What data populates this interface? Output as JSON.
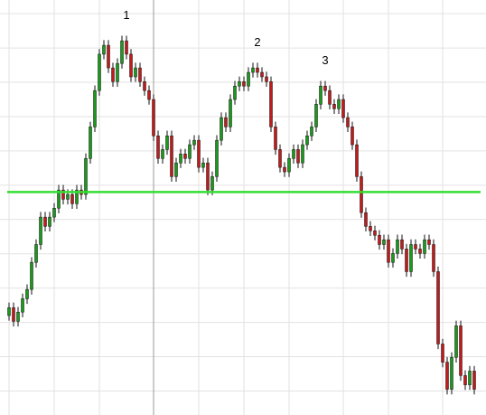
{
  "chart_data": {
    "type": "candlestick",
    "candles": [
      [
        22.0,
        25.8,
        20.5,
        24.3
      ],
      [
        24.3,
        25.8,
        18.8,
        20.3
      ],
      [
        20.3,
        24.5,
        18.8,
        23.0
      ],
      [
        23.0,
        28.4,
        21.5,
        26.9
      ],
      [
        26.9,
        31.1,
        25.4,
        29.6
      ],
      [
        29.6,
        39.0,
        28.1,
        37.5
      ],
      [
        37.5,
        44.2,
        36.0,
        42.7
      ],
      [
        42.7,
        52.2,
        41.2,
        50.7
      ],
      [
        50.7,
        52.2,
        46.5,
        48.0
      ],
      [
        48.0,
        52.2,
        46.5,
        50.7
      ],
      [
        50.7,
        54.8,
        49.2,
        53.3
      ],
      [
        53.3,
        60.1,
        51.8,
        58.6
      ],
      [
        58.6,
        60.1,
        54.4,
        55.9
      ],
      [
        55.9,
        58.8,
        54.4,
        57.3
      ],
      [
        57.3,
        58.8,
        53.1,
        54.6
      ],
      [
        54.6,
        60.1,
        53.1,
        58.6
      ],
      [
        58.6,
        60.1,
        55.8,
        57.3
      ],
      [
        57.3,
        69.3,
        55.8,
        67.8
      ],
      [
        67.8,
        78.5,
        66.3,
        77.0
      ],
      [
        77.0,
        89.1,
        75.5,
        87.6
      ],
      [
        87.6,
        99.7,
        86.1,
        98.2
      ],
      [
        98.2,
        102.3,
        96.7,
        100.8
      ],
      [
        100.8,
        102.3,
        92.7,
        94.2
      ],
      [
        94.2,
        95.7,
        88.7,
        90.2
      ],
      [
        90.2,
        97.0,
        88.7,
        95.5
      ],
      [
        95.5,
        103.6,
        94.0,
        102.1
      ],
      [
        102.1,
        103.6,
        96.7,
        98.2
      ],
      [
        98.2,
        99.7,
        90.1,
        91.6
      ],
      [
        91.6,
        95.7,
        90.1,
        94.2
      ],
      [
        94.2,
        95.7,
        88.7,
        90.2
      ],
      [
        90.2,
        91.7,
        86.1,
        87.6
      ],
      [
        87.6,
        89.1,
        83.5,
        85.0
      ],
      [
        85.0,
        86.5,
        72.9,
        74.4
      ],
      [
        74.4,
        75.9,
        66.3,
        67.8
      ],
      [
        67.8,
        71.9,
        66.3,
        70.4
      ],
      [
        70.4,
        75.9,
        68.9,
        74.4
      ],
      [
        74.4,
        75.9,
        61.0,
        62.5
      ],
      [
        62.5,
        68.0,
        61.0,
        66.5
      ],
      [
        66.5,
        70.6,
        65.0,
        69.1
      ],
      [
        69.1,
        70.6,
        66.3,
        67.8
      ],
      [
        67.8,
        73.3,
        66.3,
        71.8
      ],
      [
        71.8,
        74.6,
        70.3,
        73.1
      ],
      [
        73.1,
        74.6,
        63.7,
        65.2
      ],
      [
        65.2,
        68.0,
        63.7,
        66.5
      ],
      [
        66.5,
        68.0,
        57.1,
        58.6
      ],
      [
        58.6,
        64.0,
        57.1,
        62.5
      ],
      [
        62.5,
        74.6,
        61.0,
        73.1
      ],
      [
        73.1,
        81.2,
        71.6,
        79.7
      ],
      [
        79.7,
        81.2,
        75.5,
        77.0
      ],
      [
        77.0,
        86.5,
        75.5,
        85.0
      ],
      [
        85.0,
        90.4,
        83.5,
        88.9
      ],
      [
        88.9,
        91.7,
        87.4,
        90.2
      ],
      [
        90.2,
        91.7,
        87.4,
        88.9
      ],
      [
        88.9,
        94.4,
        87.4,
        92.9
      ],
      [
        92.9,
        95.7,
        91.4,
        94.2
      ],
      [
        94.2,
        95.7,
        91.4,
        92.9
      ],
      [
        92.9,
        94.4,
        90.1,
        91.6
      ],
      [
        91.6,
        93.1,
        88.7,
        90.2
      ],
      [
        90.2,
        91.7,
        75.5,
        77.0
      ],
      [
        77.0,
        78.5,
        68.9,
        70.4
      ],
      [
        70.4,
        71.9,
        63.7,
        65.2
      ],
      [
        65.2,
        66.7,
        62.4,
        63.9
      ],
      [
        63.9,
        69.3,
        62.4,
        67.8
      ],
      [
        67.8,
        71.9,
        66.3,
        70.4
      ],
      [
        70.4,
        71.9,
        65.0,
        66.5
      ],
      [
        66.5,
        73.3,
        65.0,
        71.8
      ],
      [
        71.8,
        75.9,
        70.3,
        74.4
      ],
      [
        74.4,
        78.5,
        72.9,
        77.0
      ],
      [
        77.0,
        85.1,
        75.5,
        83.6
      ],
      [
        83.6,
        90.4,
        82.1,
        88.9
      ],
      [
        88.9,
        90.4,
        86.1,
        87.6
      ],
      [
        87.6,
        89.1,
        82.1,
        83.6
      ],
      [
        83.6,
        85.1,
        80.8,
        82.3
      ],
      [
        82.3,
        86.5,
        80.8,
        85.0
      ],
      [
        85.0,
        86.5,
        78.2,
        79.7
      ],
      [
        79.7,
        81.2,
        75.5,
        77.0
      ],
      [
        77.0,
        78.5,
        70.3,
        71.8
      ],
      [
        71.8,
        73.3,
        61.0,
        62.5
      ],
      [
        62.5,
        64.0,
        50.5,
        52.0
      ],
      [
        52.0,
        53.5,
        46.5,
        48.0
      ],
      [
        48.0,
        49.5,
        45.2,
        46.7
      ],
      [
        46.7,
        48.2,
        43.9,
        45.4
      ],
      [
        45.4,
        46.9,
        41.2,
        42.7
      ],
      [
        42.7,
        45.6,
        41.2,
        44.1
      ],
      [
        44.1,
        45.6,
        36.0,
        37.5
      ],
      [
        37.5,
        41.6,
        36.0,
        40.1
      ],
      [
        40.1,
        45.6,
        38.6,
        44.1
      ],
      [
        44.1,
        45.6,
        39.9,
        41.4
      ],
      [
        41.4,
        42.9,
        33.3,
        34.8
      ],
      [
        34.8,
        44.2,
        33.3,
        42.7
      ],
      [
        42.7,
        44.2,
        39.9,
        41.4
      ],
      [
        41.4,
        42.9,
        38.6,
        40.1
      ],
      [
        40.1,
        45.6,
        38.6,
        44.1
      ],
      [
        44.1,
        45.6,
        41.2,
        42.7
      ],
      [
        42.7,
        44.2,
        33.3,
        34.8
      ],
      [
        34.8,
        36.3,
        12.2,
        13.7
      ],
      [
        13.7,
        15.2,
        6.9,
        8.4
      ],
      [
        8.4,
        9.9,
        -1.0,
        0.5
      ],
      [
        0.5,
        11.3,
        -1.0,
        9.8
      ],
      [
        9.8,
        20.5,
        8.3,
        19.0
      ],
      [
        19.0,
        20.5,
        3.0,
        4.5
      ],
      [
        4.5,
        6.0,
        0.3,
        1.8
      ],
      [
        1.8,
        7.3,
        0.3,
        5.8
      ],
      [
        5.8,
        7.3,
        -1.0,
        0.5
      ]
    ],
    "up_color": "#1a9a1a",
    "down_color": "#c21a1a",
    "ylim": [
      -7,
      114
    ],
    "yticks": [
      0,
      10,
      20,
      30,
      40,
      50,
      60,
      70,
      80,
      90,
      100,
      110
    ],
    "xticks": [
      0,
      10,
      20,
      32,
      42,
      52,
      62,
      74,
      84,
      96
    ],
    "major_xtick": 32,
    "grid": true,
    "hline": {
      "value": 58,
      "color": "#33dd33"
    },
    "annotations": [
      {
        "text": "1",
        "index": 25
      },
      {
        "text": "2",
        "index": 54
      },
      {
        "text": "3",
        "index": 69
      }
    ]
  }
}
